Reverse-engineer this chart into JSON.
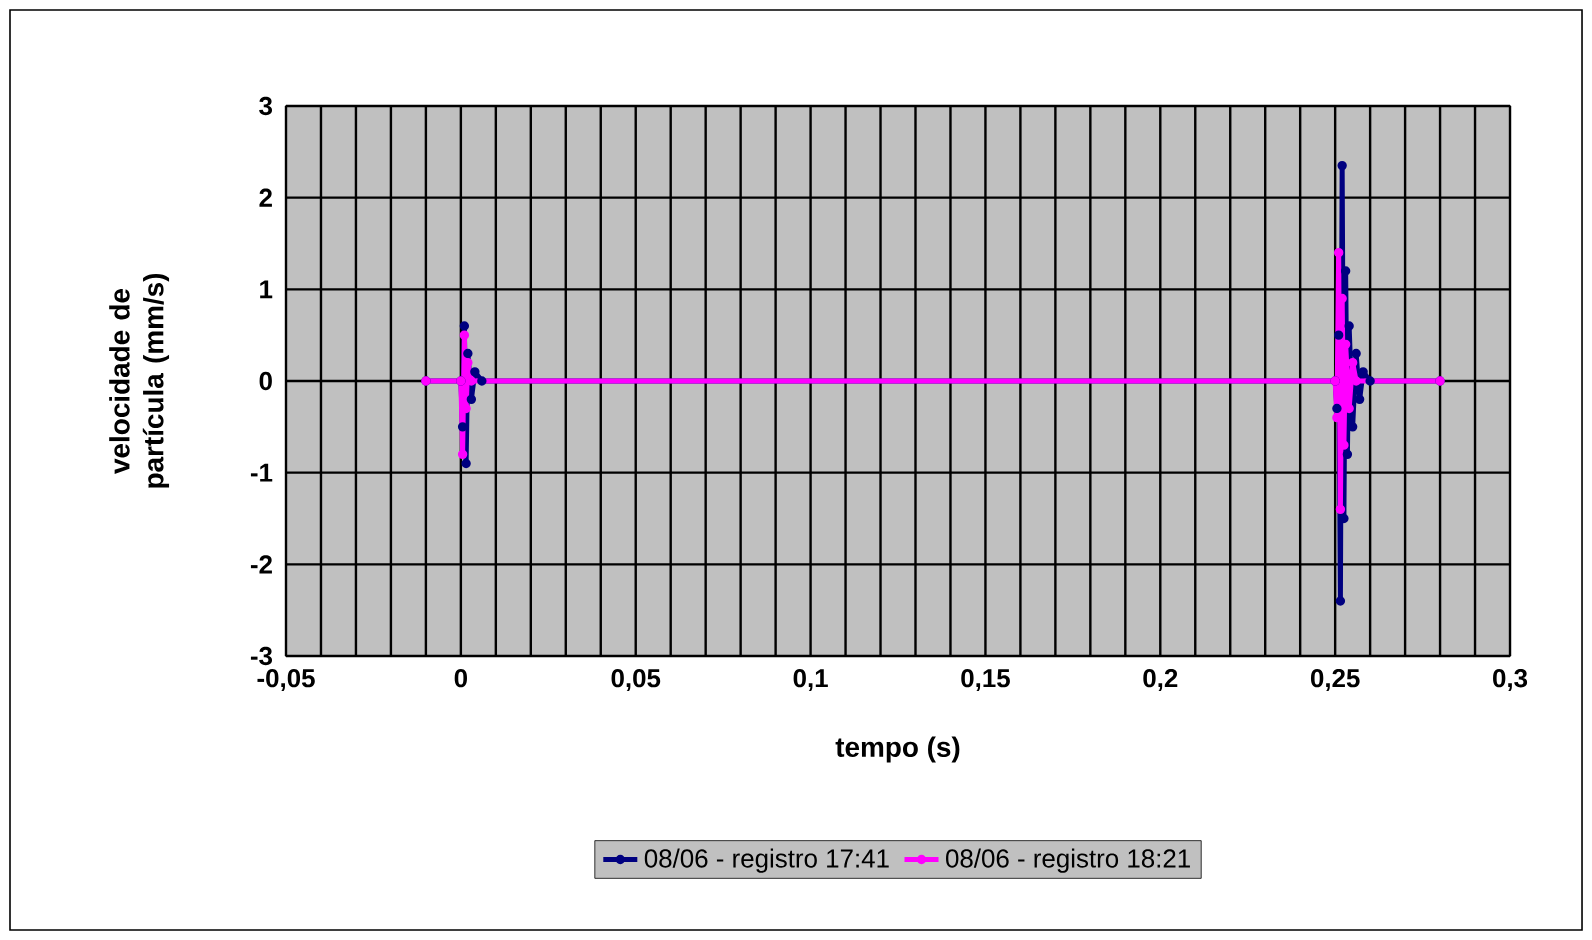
{
  "chart_data": {
    "type": "line",
    "xlabel": "tempo (s)",
    "ylabel": "velocidade de partícula (mm/s)",
    "xlim": [
      -0.05,
      0.3
    ],
    "ylim": [
      -3,
      3
    ],
    "xticks": [
      {
        "value": -0.05,
        "label": "-0,05"
      },
      {
        "value": -0.04,
        "label": null
      },
      {
        "value": -0.03,
        "label": null
      },
      {
        "value": -0.02,
        "label": null
      },
      {
        "value": -0.01,
        "label": null
      },
      0,
      {
        "value": 0.01,
        "label": null
      },
      {
        "value": 0.02,
        "label": null
      },
      {
        "value": 0.03,
        "label": null
      },
      {
        "value": 0.04,
        "label": null
      },
      {
        "value": 0.05,
        "label": "0,05"
      },
      {
        "value": 0.06,
        "label": null
      },
      {
        "value": 0.07,
        "label": null
      },
      {
        "value": 0.08,
        "label": null
      },
      {
        "value": 0.09,
        "label": null
      },
      {
        "value": 0.1,
        "label": "0,1"
      },
      {
        "value": 0.11,
        "label": null
      },
      {
        "value": 0.12,
        "label": null
      },
      {
        "value": 0.13,
        "label": null
      },
      {
        "value": 0.14,
        "label": null
      },
      {
        "value": 0.15,
        "label": "0,15"
      },
      {
        "value": 0.16,
        "label": null
      },
      {
        "value": 0.17,
        "label": null
      },
      {
        "value": 0.18,
        "label": null
      },
      {
        "value": 0.19,
        "label": null
      },
      {
        "value": 0.2,
        "label": "0,2"
      },
      {
        "value": 0.21,
        "label": null
      },
      {
        "value": 0.22,
        "label": null
      },
      {
        "value": 0.23,
        "label": null
      },
      {
        "value": 0.24,
        "label": null
      },
      {
        "value": 0.25,
        "label": "0,25"
      },
      {
        "value": 0.26,
        "label": null
      },
      {
        "value": 0.27,
        "label": null
      },
      {
        "value": 0.28,
        "label": null
      },
      {
        "value": 0.29,
        "label": null
      },
      {
        "value": 0.3,
        "label": "0,3"
      }
    ],
    "yticks": [
      -3,
      -2,
      -1,
      0,
      1,
      2,
      3
    ],
    "grid": true,
    "legend": "bottom",
    "marker": "circle",
    "series": [
      {
        "name": "08/06 - registro 17:41",
        "color": "#000080",
        "x": [
          -0.01,
          0,
          0.0005,
          0.001,
          0.0015,
          0.002,
          0.003,
          0.004,
          0.006,
          0.25,
          0.2505,
          0.251,
          0.2515,
          0.252,
          0.2525,
          0.253,
          0.2535,
          0.254,
          0.255,
          0.256,
          0.257,
          0.258,
          0.26,
          0.28
        ],
        "values": [
          0,
          0,
          -0.5,
          0.6,
          -0.9,
          0.3,
          -0.2,
          0.1,
          0,
          0,
          -0.3,
          0.5,
          -2.4,
          2.35,
          -1.5,
          1.2,
          -0.8,
          0.6,
          -0.5,
          0.3,
          -0.2,
          0.1,
          0,
          0
        ]
      },
      {
        "name": "08/06 - registro 18:21",
        "color": "#ff00ff",
        "x": [
          -0.01,
          0,
          0.0005,
          0.001,
          0.0015,
          0.002,
          0.003,
          0.25,
          0.2505,
          0.251,
          0.2515,
          0.252,
          0.2525,
          0.253,
          0.254,
          0.255,
          0.256,
          0.28
        ],
        "values": [
          0,
          0,
          -0.8,
          0.5,
          -0.3,
          0.2,
          0,
          0,
          -0.4,
          1.4,
          -1.4,
          0.9,
          -0.7,
          0.4,
          -0.3,
          0.2,
          0,
          0
        ]
      }
    ]
  }
}
